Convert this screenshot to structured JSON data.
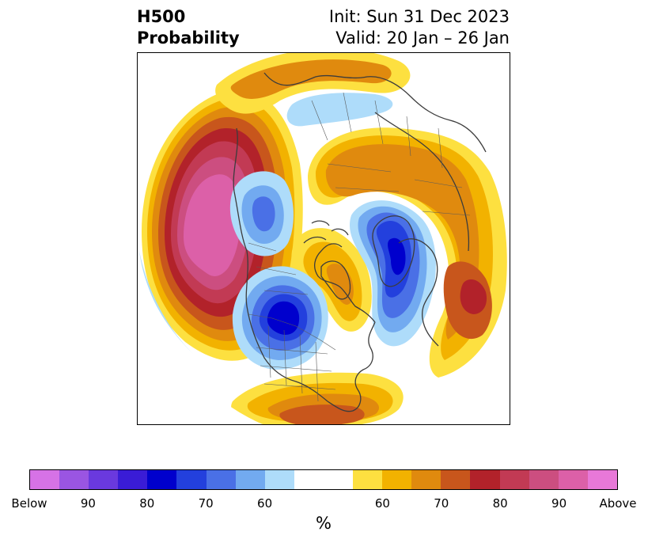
{
  "title": {
    "left_line1": "H500",
    "left_line2": "Probability",
    "right_line1": "Init: Sun 31 Dec 2023",
    "right_line2": "Valid: 20 Jan – 26 Jan"
  },
  "colorbar": {
    "below_colors": [
      "#d672e6",
      "#9a55e2",
      "#6a39de",
      "#3a1cd6",
      "#0000cd",
      "#2340dd",
      "#4a70e6",
      "#72aaf0",
      "#aedcfa"
    ],
    "neutral_colors": [
      "#ffffff",
      "#ffffff"
    ],
    "above_colors": [
      "#fde040",
      "#f2b200",
      "#e08a0e",
      "#c8561c",
      "#b2222a",
      "#c23a54",
      "#cc4e80",
      "#dc60a8",
      "#e878d8"
    ],
    "tick_labels": [
      "Below",
      "90",
      "80",
      "70",
      "60",
      "60",
      "70",
      "80",
      "90",
      "Above"
    ],
    "unit_label": "%"
  },
  "map": {
    "projection": "north-polar-stereographic",
    "features": [
      "coastlines",
      "country-borders",
      "state-borders"
    ]
  }
}
